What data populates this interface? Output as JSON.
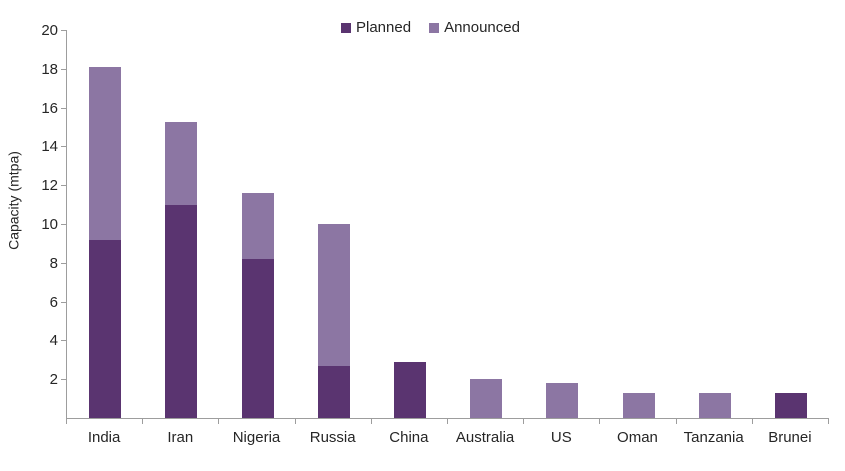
{
  "chart_data": {
    "type": "bar",
    "subtype": "stacked-column",
    "title": "",
    "xlabel": "",
    "ylabel": "Capacity (mtpa)",
    "ylim": [
      0,
      20
    ],
    "yticks": [
      2,
      4,
      6,
      8,
      10,
      12,
      14,
      16,
      18,
      20
    ],
    "grid": false,
    "legend_position": "top-center",
    "categories": [
      "India",
      "Iran",
      "Nigeria",
      "Russia",
      "China",
      "Australia",
      "US",
      "Oman",
      "Tanzania",
      "Brunei"
    ],
    "series": [
      {
        "name": "Planned",
        "color": "#5a3470",
        "values": [
          9.2,
          11.0,
          8.2,
          2.7,
          2.9,
          0,
          0,
          0,
          0,
          1.3
        ]
      },
      {
        "name": "Announced",
        "color": "#8c76a3",
        "values": [
          8.9,
          4.3,
          3.4,
          7.3,
          0,
          2.0,
          1.8,
          1.3,
          1.3,
          0
        ]
      }
    ],
    "totals": [
      18.1,
      15.3,
      11.6,
      10.0,
      2.9,
      2.0,
      1.8,
      1.3,
      1.3,
      1.3
    ],
    "colors": {
      "axis_line": "#9d9d9d",
      "text": "#262626",
      "background": "#ffffff"
    }
  }
}
